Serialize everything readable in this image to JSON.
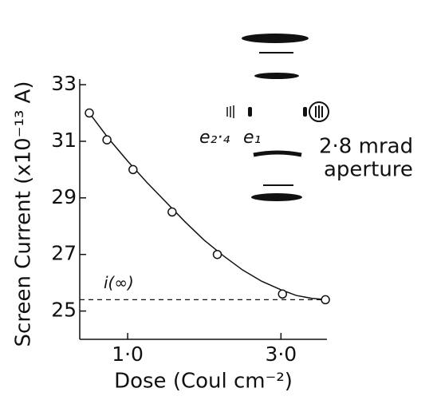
{
  "chart_data": {
    "type": "scatter",
    "x_label": "Dose (Coul cm⁻²)",
    "y_label": "Screen Current (x10⁻¹³ A)",
    "x": [
      0.5,
      0.73,
      1.07,
      1.58,
      2.17,
      3.02,
      3.58
    ],
    "values": [
      32.0,
      31.05,
      30.0,
      28.5,
      27.0,
      25.6,
      25.4
    ],
    "fit": {
      "x": [
        0.5,
        0.75,
        1.0,
        1.25,
        1.5,
        1.75,
        2.0,
        2.25,
        2.5,
        2.75,
        3.0,
        3.2,
        3.4,
        3.6
      ],
      "values": [
        32.0,
        31.1,
        30.3,
        29.55,
        28.85,
        28.15,
        27.5,
        26.95,
        26.45,
        26.05,
        25.75,
        25.55,
        25.45,
        25.4
      ]
    },
    "reference": {
      "value": 25.4,
      "label": "i(∞)"
    },
    "xlim": [
      0.375,
      3.6
    ],
    "ylim": [
      24,
      33.2
    ],
    "xticks": [
      {
        "value": 1,
        "label": "1·0"
      },
      {
        "value": 3,
        "label": "3·0"
      }
    ],
    "yticks": [
      25,
      27,
      29,
      31,
      33
    ],
    "annotations": [
      "e₂·₄",
      "e₁",
      "2·8 mrad",
      "aperture"
    ]
  }
}
